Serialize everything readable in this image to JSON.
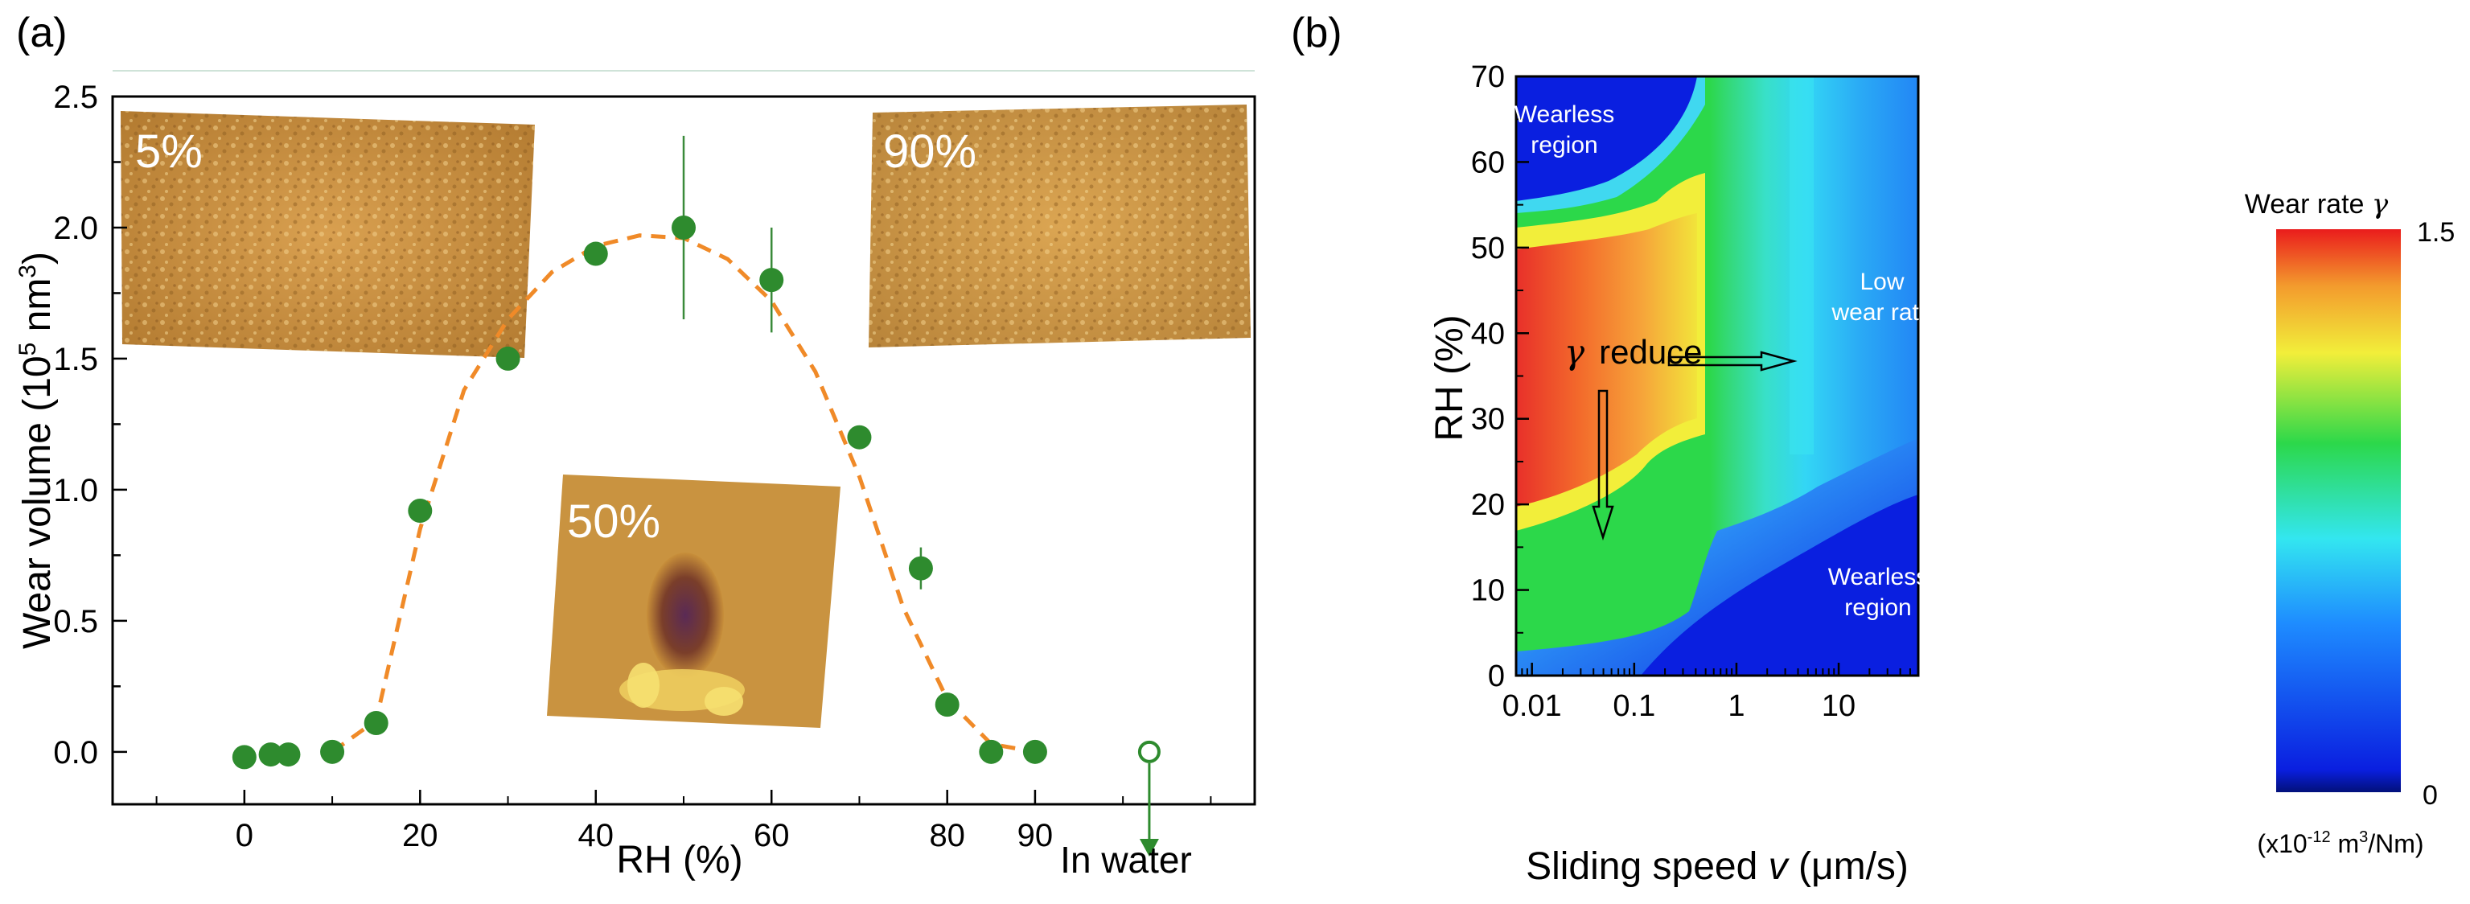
{
  "panel_labels": {
    "a": "(a)",
    "b": "(b)"
  },
  "chart_data": [
    {
      "id": "a",
      "type": "scatter",
      "xlabel": "RH (%)",
      "ylabel": "Wear volume (10",
      "ylabel_sup": "5",
      "ylabel_unit": " nm",
      "ylabel_sup2": "3",
      "ylabel_close": ")",
      "xlim": [
        -15,
        115
      ],
      "ylim": [
        -0.2,
        2.5
      ],
      "xticks": [
        0,
        20,
        40,
        60,
        80,
        90
      ],
      "yticks": [
        "0.0",
        "0.5",
        "1.0",
        "1.5",
        "2.0",
        "2.5"
      ],
      "water_label": "In water",
      "water_point": {
        "x": 103,
        "y": 0.0
      },
      "points": [
        {
          "x": 0,
          "y": -0.02,
          "err": 0
        },
        {
          "x": 3,
          "y": -0.01,
          "err": 0
        },
        {
          "x": 5,
          "y": -0.01,
          "err": 0
        },
        {
          "x": 10,
          "y": 0.0,
          "err": 0
        },
        {
          "x": 15,
          "y": 0.11,
          "err": 0
        },
        {
          "x": 20,
          "y": 0.92,
          "err": 0
        },
        {
          "x": 30,
          "y": 1.5,
          "err": 0
        },
        {
          "x": 40,
          "y": 1.9,
          "err": 0
        },
        {
          "x": 50,
          "y": 2.0,
          "err": 0.35
        },
        {
          "x": 60,
          "y": 1.8,
          "err": 0.2
        },
        {
          "x": 70,
          "y": 1.2,
          "err": 0
        },
        {
          "x": 77,
          "y": 0.7,
          "err": 0.08
        },
        {
          "x": 80,
          "y": 0.18,
          "err": 0
        },
        {
          "x": 85,
          "y": 0.0,
          "err": 0
        },
        {
          "x": 90,
          "y": 0.0,
          "err": 0
        }
      ],
      "fit_curve": {
        "x": [
          10,
          15,
          20,
          25,
          30,
          35,
          40,
          45,
          50,
          55,
          60,
          65,
          70,
          75,
          80,
          85,
          90
        ],
        "y": [
          0.0,
          0.12,
          0.85,
          1.38,
          1.65,
          1.83,
          1.93,
          1.97,
          1.96,
          1.88,
          1.72,
          1.45,
          1.05,
          0.55,
          0.2,
          0.03,
          0.0
        ]
      },
      "insets": [
        {
          "label": "5%"
        },
        {
          "label": "90%"
        },
        {
          "label": "50%"
        }
      ],
      "colors": {
        "marker": "#2e8b2e",
        "fit": "#f08a28",
        "axis": "#000000"
      }
    },
    {
      "id": "b",
      "type": "heatmap",
      "xlabel": "Sliding speed ",
      "xlabel_var": "v",
      "xlabel_unit": " (μm/s)",
      "ylabel": "RH (%)",
      "xscale": "log",
      "xlim": [
        0.007,
        60
      ],
      "ylim": [
        0,
        70
      ],
      "xticks": [
        {
          "value": 0.01,
          "label": "0.01"
        },
        {
          "value": 0.1,
          "label": "0.1"
        },
        {
          "value": 1,
          "label": "1"
        },
        {
          "value": 10,
          "label": "10"
        }
      ],
      "yticks": [
        0,
        10,
        20,
        30,
        40,
        50,
        60,
        70
      ],
      "colorbar": {
        "title": "Wear rate ",
        "title_var": "γ",
        "max_label": "1.5",
        "min_label": "0",
        "unit_prefix": "(x10",
        "unit_exp": "-12",
        "unit_mid": " m",
        "unit_exp2": "3",
        "unit_suffix": "/Nm)",
        "range": [
          0,
          1.5
        ]
      },
      "annotations": {
        "wearless_top_1": "Wearless",
        "wearless_top_2": "region",
        "low_1": "Low",
        "low_2": "wear rate",
        "wearless_bottom_1": "Wearless",
        "wearless_bottom_2": "region",
        "reduce_symbol": "γ",
        "reduce_text": "reduce"
      },
      "colors": {
        "dark_blue": "#0a1fe0",
        "blue": "#1f4cf5",
        "cyan": "#33d6f5",
        "green": "#2cd84a",
        "yellow": "#f2ee3a",
        "orange": "#f39a2d",
        "red": "#e8302a"
      }
    }
  ]
}
